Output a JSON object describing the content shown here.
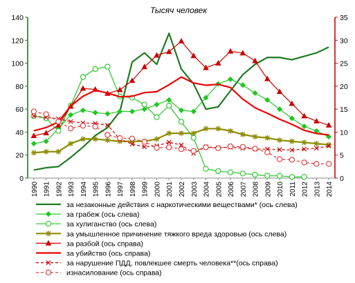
{
  "chart_data": {
    "type": "line",
    "title": "Тысяч  человек",
    "x": [
      "1990",
      "1991",
      "1992",
      "1993",
      "1994",
      "1995",
      "1996",
      "1997",
      "1998",
      "1999",
      "2000",
      "2001",
      "2002",
      "2003",
      "2004",
      "2005",
      "2006",
      "2007",
      "2008",
      "2009",
      "2010",
      "2011",
      "2012",
      "2013",
      "2014"
    ],
    "y_left": {
      "min": 0,
      "max": 140,
      "ticks": [
        0,
        20,
        40,
        60,
        80,
        100,
        120,
        140
      ]
    },
    "y_right": {
      "min": 0,
      "max": 35,
      "ticks": [
        0,
        5,
        10,
        15,
        20,
        25,
        30,
        35
      ]
    },
    "grid": false,
    "legend_position": "bottom",
    "series": [
      {
        "name": "за незаконные действия с наркотическими веществами* (ось слева)",
        "axis": "left",
        "color": "#1e7a1e",
        "marker": "none",
        "dash": "solid",
        "width": 2.2,
        "values": [
          7,
          9,
          10,
          18,
          27,
          37,
          44,
          58,
          101,
          109,
          99,
          126,
          95,
          82,
          60,
          62,
          76,
          90,
          99,
          105,
          105,
          103,
          106,
          109,
          114
        ]
      },
      {
        "name": "за грабеж (ось слева)",
        "axis": "left",
        "color": "#22c622",
        "marker": "diamond",
        "dash": "solid",
        "width": 1.2,
        "values": [
          30,
          32,
          43,
          55,
          59,
          57,
          56,
          58,
          58,
          60,
          64,
          68,
          59,
          58,
          70,
          82,
          86,
          81,
          74,
          68,
          60,
          52,
          45,
          41,
          36
        ]
      },
      {
        "name": "за хулиганство (ось слева)",
        "axis": "left",
        "color": "#22c622",
        "marker": "circle-open",
        "dash": "solid",
        "width": 1.2,
        "values": [
          54,
          52,
          41,
          63,
          88,
          95,
          97,
          71,
          70,
          64,
          53,
          63,
          49,
          35,
          8,
          6,
          5,
          4,
          3,
          2,
          2,
          1,
          1,
          null,
          null
        ]
      },
      {
        "name": "за умышленное причинение тяжкого вреда здоровью (ось слева)",
        "axis": "left",
        "color": "#8c8c00",
        "marker": "star",
        "dash": "solid",
        "width": 2.2,
        "values": [
          22,
          23,
          23,
          30,
          34,
          34,
          33,
          32,
          32,
          32,
          34,
          39,
          39,
          39,
          43,
          43,
          41,
          38,
          36,
          35,
          33,
          32,
          31,
          30,
          29
        ]
      },
      {
        "name": "за разбой (ось справа)",
        "axis": "right",
        "color": "#cc0000",
        "marker": "triangle",
        "dash": "solid",
        "width": 1.2,
        "values": [
          9.2,
          9.8,
          11.5,
          15.6,
          19.5,
          19.3,
          18.4,
          19.2,
          21.2,
          24.2,
          26.7,
          27.5,
          29.8,
          26.6,
          24.0,
          25.0,
          27.6,
          27.2,
          25.5,
          21.6,
          18.8,
          16.2,
          13.5,
          12.4,
          11.5
        ]
      },
      {
        "name": "за убийство (ось справа)",
        "axis": "right",
        "color": "#ee0000",
        "marker": "none",
        "dash": "solid",
        "width": 2.2,
        "values": [
          10.3,
          11.0,
          12.2,
          15.7,
          17.8,
          19.1,
          18.5,
          17.7,
          17.8,
          18.6,
          18.8,
          20.3,
          22.0,
          20.7,
          20.2,
          20.4,
          19.7,
          17.2,
          15.3,
          14.1,
          12.8,
          11.7,
          10.4,
          9.7,
          9.4
        ]
      },
      {
        "name": "за нарушение ПДД, повлекшее смерть человека**(ось справа)",
        "axis": "right",
        "color": "#cc0000",
        "marker": "x",
        "dash": "dashed",
        "width": 1.2,
        "values": [
          13.5,
          13.2,
          12.9,
          12.3,
          12.0,
          11.9,
          11.5,
          8.5,
          7.4,
          6.8,
          7.0,
          7.8,
          7.2,
          5.4,
          6.8,
          6.6,
          6.7,
          6.5,
          6.3,
          6.3,
          6.2,
          6.1,
          6.3,
          6.5,
          7.0
        ]
      },
      {
        "name": "изнасилование (ось справа)",
        "axis": "right",
        "color": "#e23030",
        "marker": "circle-open",
        "dash": "dashed",
        "width": 1.2,
        "values": [
          14.5,
          13.9,
          12.3,
          10.8,
          11.4,
          11.2,
          9.4,
          8.7,
          8.6,
          7.9,
          6.6,
          6.7,
          6.3,
          5.9,
          6.7,
          6.5,
          6.9,
          6.8,
          6.4,
          5.6,
          4.1,
          4.0,
          3.4,
          3.1,
          3.1
        ]
      }
    ]
  }
}
